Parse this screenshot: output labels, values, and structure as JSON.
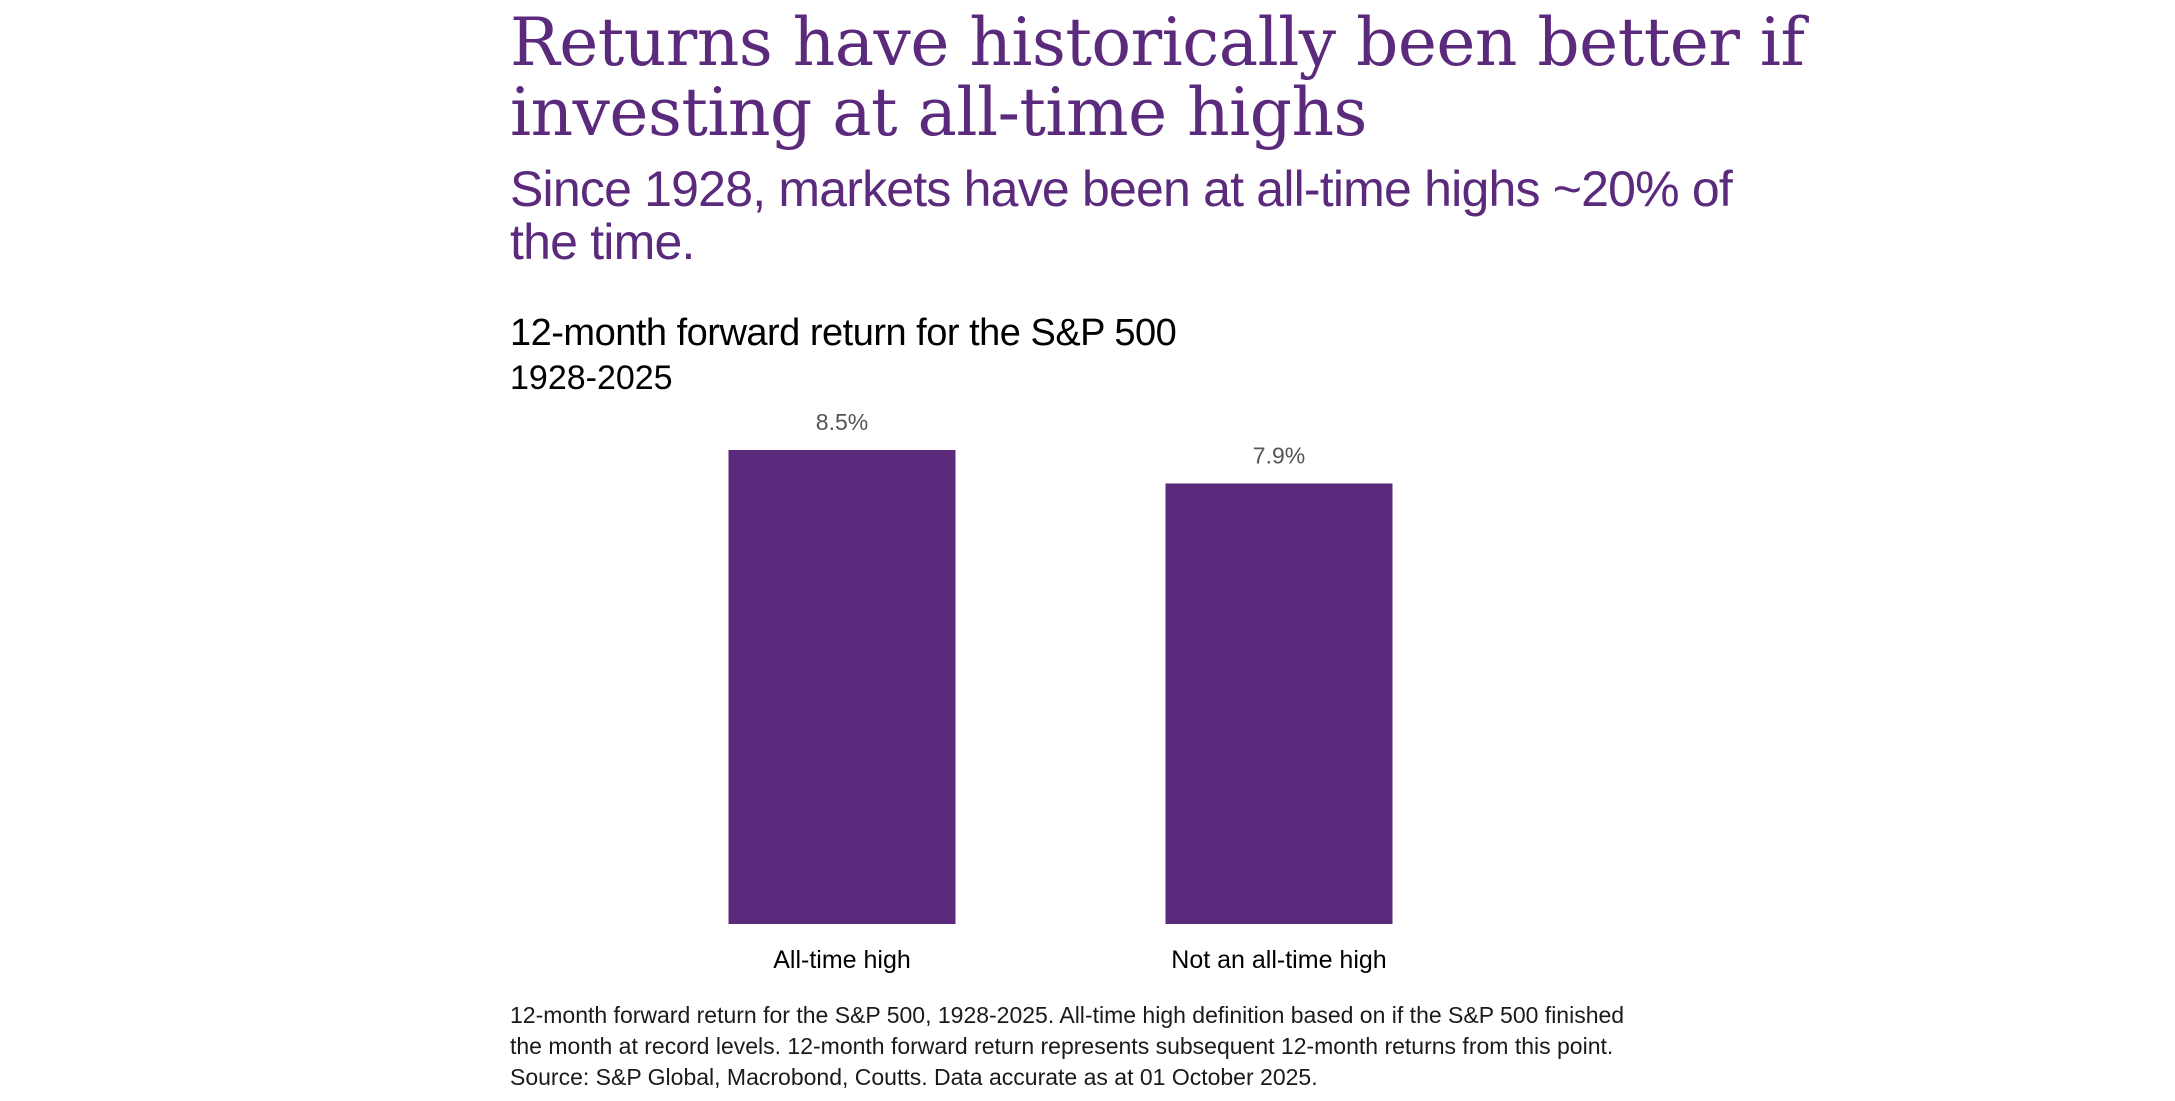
{
  "headline": "Returns have historically been better if investing at all-time highs",
  "subheadline": "Since 1928, markets have been at all-time highs ~20% of the time.",
  "footnote": "12-month forward return for the S&P 500, 1928-2025. All-time high definition based on if the S&P 500 finished the month at record levels. 12-month forward return represents subsequent 12-month returns from this point. Source: S&P Global, Macrobond, Coutts. Data accurate as at 01 October 2025.",
  "colors": {
    "bar": "#5b2a7c",
    "headline": "#5b2a7c",
    "data_label": "#555555",
    "category_label": "#000000"
  },
  "chart_data": {
    "type": "bar",
    "title": "12-month forward return for the S&P 500",
    "subtitle": "1928-2025",
    "categories": [
      "All-time high",
      "Not an all-time high"
    ],
    "values": [
      8.5,
      7.9
    ],
    "data_labels": [
      "8.5%",
      "7.9%"
    ],
    "unit": "%",
    "xlabel": "",
    "ylabel": "",
    "ylim": [
      0,
      8.5
    ],
    "grid": false,
    "legend": "none"
  }
}
